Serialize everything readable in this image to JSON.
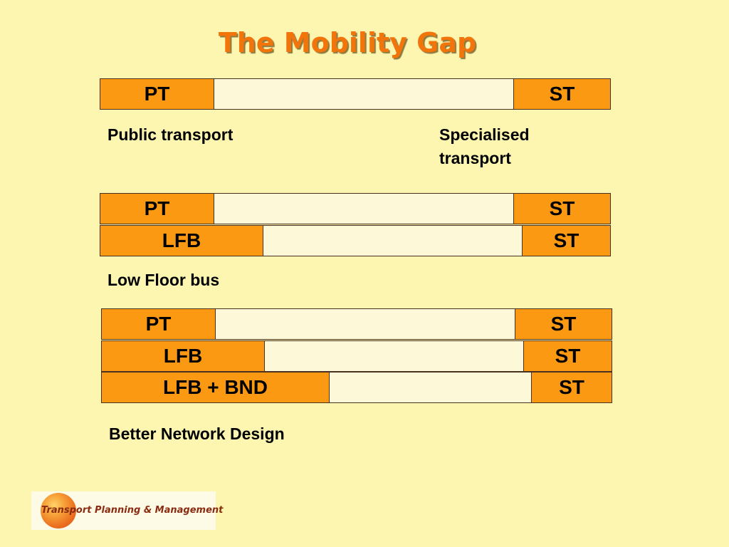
{
  "title": "The Mobility Gap",
  "diagram1": {
    "row1": {
      "left": "PT",
      "right": "ST"
    },
    "caption_left": "Public transport",
    "caption_right": "Specialised transport"
  },
  "diagram2": {
    "row1": {
      "left": "PT",
      "right": "ST"
    },
    "row2": {
      "left": "LFB",
      "right": "ST"
    },
    "caption": "Low Floor bus"
  },
  "diagram3": {
    "row1": {
      "left": "PT",
      "right": "ST"
    },
    "row2": {
      "left": "LFB",
      "right": "ST"
    },
    "row3": {
      "left": "LFB + BND",
      "right": "ST"
    },
    "caption": "Better Network Design"
  },
  "logo": {
    "text": "Transport Planning & Management"
  },
  "colors": {
    "background": "#fdf6b1",
    "title": "#f2750c",
    "segment_fill": "#fb9a12",
    "gap_fill": "#fdf9d8"
  }
}
